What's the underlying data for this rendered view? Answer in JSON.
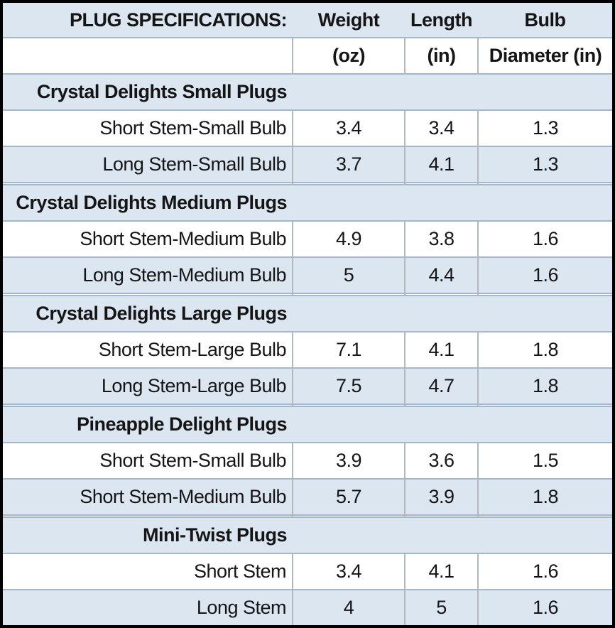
{
  "table": {
    "header": {
      "title": "PLUG SPECIFICATIONS:",
      "columns": [
        {
          "label": "Weight",
          "unit": "(oz)"
        },
        {
          "label": "Length",
          "unit": "(in)"
        },
        {
          "label": "Bulb",
          "unit": "Diameter (in)"
        }
      ]
    },
    "sections": [
      {
        "header": "Crystal Delights Small Plugs",
        "rows": [
          {
            "label": "Short Stem-Small Bulb",
            "weight_oz": "3.4",
            "length_in": "3.4",
            "bulb_diameter_in": "1.3"
          },
          {
            "label": "Long Stem-Small Bulb",
            "weight_oz": "3.7",
            "length_in": "4.1",
            "bulb_diameter_in": "1.3"
          }
        ]
      },
      {
        "header": "Crystal Delights Medium Plugs",
        "rows": [
          {
            "label": "Short Stem-Medium Bulb",
            "weight_oz": "4.9",
            "length_in": "3.8",
            "bulb_diameter_in": "1.6"
          },
          {
            "label": "Long Stem-Medium Bulb",
            "weight_oz": "5",
            "length_in": "4.4",
            "bulb_diameter_in": "1.6"
          }
        ]
      },
      {
        "header": "Crystal Delights Large Plugs",
        "rows": [
          {
            "label": "Short Stem-Large Bulb",
            "weight_oz": "7.1",
            "length_in": "4.1",
            "bulb_diameter_in": "1.8"
          },
          {
            "label": "Long Stem-Large Bulb",
            "weight_oz": "7.5",
            "length_in": "4.7",
            "bulb_diameter_in": "1.8"
          }
        ]
      },
      {
        "header": "Pineapple Delight Plugs",
        "rows": [
          {
            "label": "Short Stem-Small Bulb",
            "weight_oz": "3.9",
            "length_in": "3.6",
            "bulb_diameter_in": "1.5"
          },
          {
            "label": "Short Stem-Medium Bulb",
            "weight_oz": "5.7",
            "length_in": "3.9",
            "bulb_diameter_in": "1.8"
          }
        ]
      },
      {
        "header": "Mini-Twist Plugs",
        "rows": [
          {
            "label": "Short Stem",
            "weight_oz": "3.4",
            "length_in": "4.1",
            "bulb_diameter_in": "1.6"
          },
          {
            "label": "Long Stem",
            "weight_oz": "4",
            "length_in": "5",
            "bulb_diameter_in": "1.6"
          }
        ]
      }
    ],
    "colors": {
      "band_blue": "#dce6f1",
      "row_white": "#ffffff",
      "grid_horizontal": "#a3b8cc",
      "grid_vertical": "#b3b8bd",
      "outer_border": "#000000",
      "text": "#151515"
    }
  }
}
